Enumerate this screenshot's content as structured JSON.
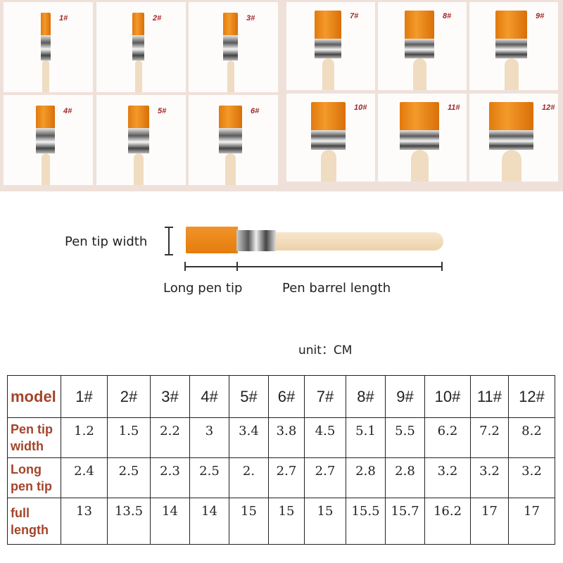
{
  "brushes": [
    {
      "label": "1#",
      "tip": 1.2
    },
    {
      "label": "2#",
      "tip": 1.5
    },
    {
      "label": "3#",
      "tip": 2.2
    },
    {
      "label": "4#",
      "tip": 3
    },
    {
      "label": "5#",
      "tip": 3.4
    },
    {
      "label": "6#",
      "tip": 3.8
    },
    {
      "label": "7#",
      "tip": 4.5
    },
    {
      "label": "8#",
      "tip": 5.1
    },
    {
      "label": "9#",
      "tip": 5.5
    },
    {
      "label": "10#",
      "tip": 6.2
    },
    {
      "label": "11#",
      "tip": 7.2
    },
    {
      "label": "12#",
      "tip": 8.2
    }
  ],
  "diagram": {
    "pen_tip_width": "Pen tip width",
    "long_pen_tip": "Long pen tip",
    "pen_barrel_length": "Pen barrel length"
  },
  "unit": "unit：CM",
  "table": {
    "headers": [
      "model",
      "1#",
      "2#",
      "3#",
      "4#",
      "5#",
      "6#",
      "7#",
      "8#",
      "9#",
      "10#",
      "11#",
      "12#"
    ],
    "rows": [
      {
        "label": "Pen tip width",
        "values": [
          "1.2",
          "1.5",
          "2.2",
          "3",
          "3.4",
          "3.8",
          "4.5",
          "5.1",
          "5.5",
          "6.2",
          "7.2",
          "8.2"
        ]
      },
      {
        "label": "Long pen tip",
        "values": [
          "2.4",
          "2.5",
          "2.3",
          "2.5",
          "2.",
          "2.7",
          "2.7",
          "2.8",
          "2.8",
          "3.2",
          "3.2",
          "3.2"
        ]
      },
      {
        "label": "full length",
        "values": [
          "13",
          "13.5",
          "14",
          "14",
          "15",
          "15",
          "15",
          "15.5",
          "15.7",
          "16.2",
          "17",
          "17"
        ]
      }
    ]
  },
  "colors": {
    "bristle": "#e8820f",
    "label": "#a0282a",
    "header": "#a3452a"
  }
}
